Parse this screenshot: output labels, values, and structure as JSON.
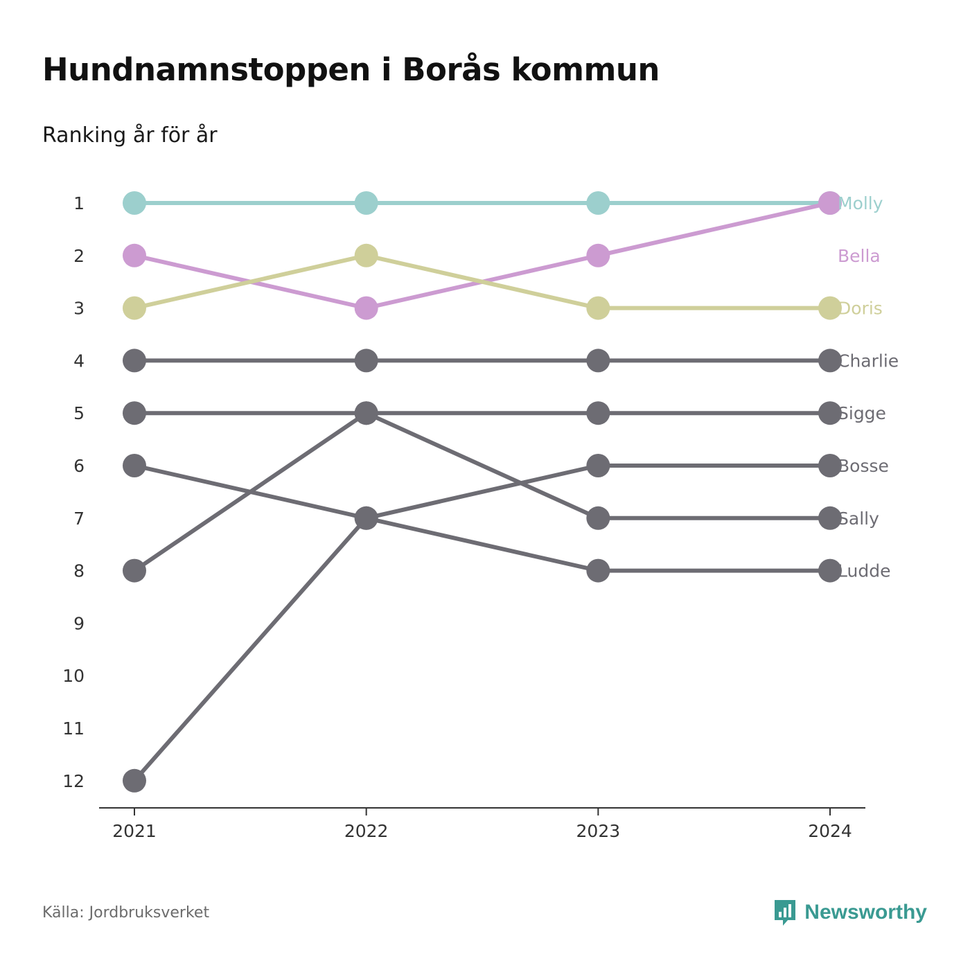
{
  "header": {
    "title": "Hundnamnstoppen i Borås kommun",
    "subtitle": "Ranking år för år"
  },
  "footer": {
    "source": "Källa: Jordbruksverket",
    "brand": "Newsworthy"
  },
  "colors": {
    "Molly": "#9ccfcd",
    "Bella": "#cc9bd1",
    "Doris": "#cfcf9a",
    "default": "#6d6c73",
    "axis": "#333333",
    "tick_text": "#333333",
    "brand": "#3a9a92"
  },
  "icons": {
    "brand_logo": "newsworthy-logo-icon"
  },
  "chart_data": {
    "type": "line",
    "chart_kind": "bump",
    "title": "Hundnamnstoppen i Borås kommun",
    "subtitle": "Ranking år för år",
    "x": [
      "2021",
      "2022",
      "2023",
      "2024"
    ],
    "y_ticks": [
      "1",
      "2",
      "3",
      "4",
      "5",
      "6",
      "7",
      "8",
      "9",
      "10",
      "11",
      "12"
    ],
    "ylim": [
      1,
      12
    ],
    "y_inverted": true,
    "grid": false,
    "series": [
      {
        "name": "Molly",
        "values": [
          1,
          1,
          1,
          1
        ]
      },
      {
        "name": "Bella",
        "values": [
          2,
          3,
          2,
          1
        ]
      },
      {
        "name": "Doris",
        "values": [
          3,
          2,
          3,
          3
        ]
      },
      {
        "name": "Charlie",
        "values": [
          4,
          4,
          4,
          4
        ]
      },
      {
        "name": "Sigge",
        "values": [
          8,
          5,
          5,
          5
        ]
      },
      {
        "name": "Bosse",
        "values": [
          12,
          7,
          6,
          6
        ]
      },
      {
        "name": "Sally",
        "values": [
          5,
          5,
          7,
          7
        ]
      },
      {
        "name": "Ludde",
        "values": [
          6,
          7,
          8,
          8
        ]
      }
    ]
  }
}
